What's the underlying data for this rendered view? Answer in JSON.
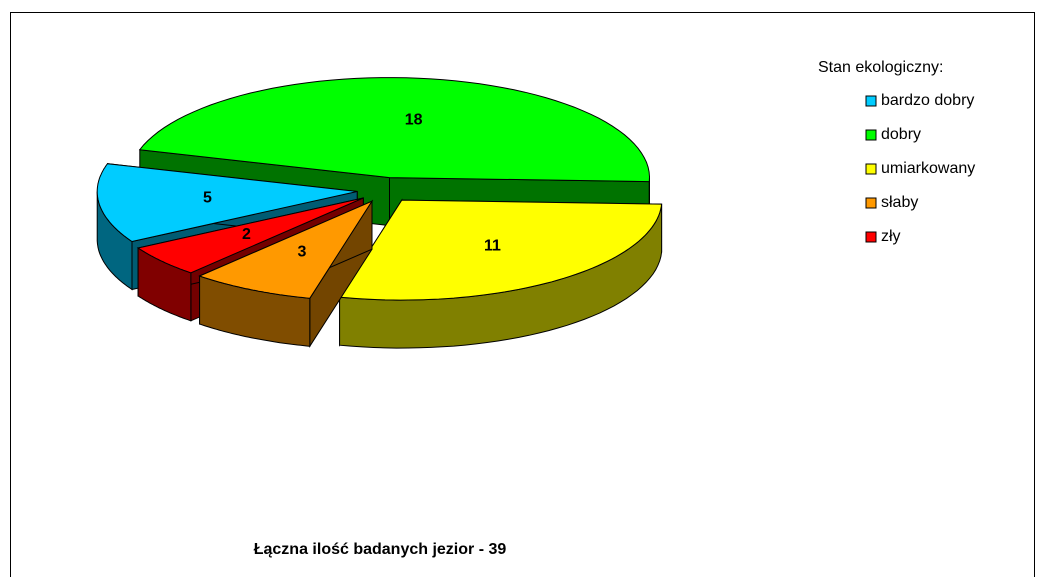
{
  "chart_data": {
    "type": "pie",
    "title": "Łączna ilość badanych jezior - 39",
    "legend_title": "Stan ekologiczny:",
    "categories": [
      "bardzo dobry",
      "dobry",
      "umiarkowany",
      "słaby",
      "zły"
    ],
    "values": [
      5,
      18,
      11,
      3,
      2
    ],
    "colors": [
      "#00ccff",
      "#00ff00",
      "#ffff00",
      "#ff9900",
      "#ff0000"
    ],
    "legend": "right",
    "three_d": true,
    "exploded": true
  }
}
